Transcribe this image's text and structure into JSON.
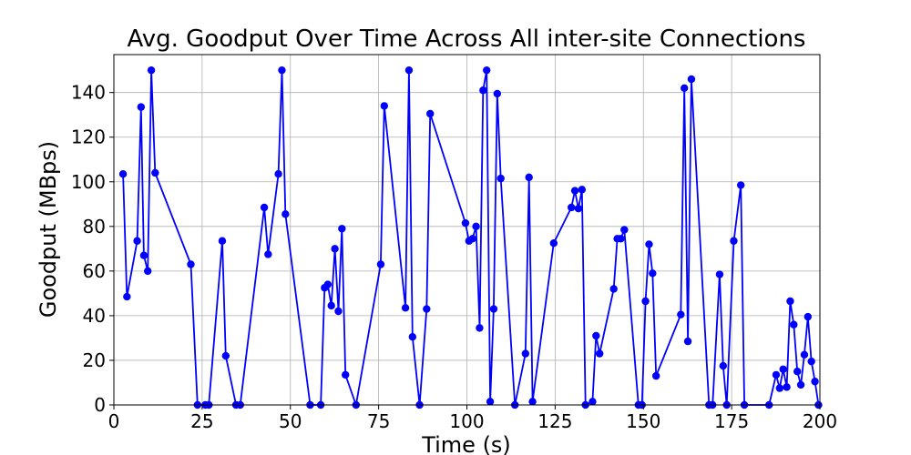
{
  "chart_data": {
    "type": "line",
    "title": "Avg. Goodput Over Time Across All inter-site Connections",
    "xlabel": "Time (s)",
    "ylabel": "Goodput (MBps)",
    "xlim": [
      0,
      200
    ],
    "ylim": [
      0,
      157
    ],
    "xticks": [
      0,
      25,
      50,
      75,
      100,
      125,
      150,
      175,
      200
    ],
    "yticks": [
      0,
      20,
      40,
      60,
      80,
      100,
      120,
      140
    ],
    "grid": true,
    "legend": "none",
    "series": [
      {
        "color": "#0000ff",
        "marker": "circle",
        "x": [
          2.6,
          3.7,
          6.6,
          7.7,
          8.5,
          9.6,
          10.6,
          11.7,
          21.8,
          23.7,
          25.9,
          26.9,
          30.7,
          31.7,
          34.6,
          35.8,
          42.6,
          43.7,
          46.6,
          47.6,
          48.6,
          55.6,
          58.6,
          59.7,
          60.6,
          61.6,
          62.6,
          63.6,
          64.6,
          65.6,
          68.6,
          75.6,
          76.6,
          82.6,
          83.6,
          84.6,
          86.6,
          88.6,
          89.6,
          99.6,
          100.6,
          101.6,
          102.6,
          103.6,
          104.6,
          105.6,
          106.6,
          107.6,
          108.6,
          109.6,
          113.6,
          116.6,
          117.6,
          118.6,
          124.6,
          129.6,
          130.6,
          131.6,
          132.6,
          133.6,
          135.6,
          136.6,
          137.6,
          141.6,
          142.6,
          143.6,
          144.6,
          148.6,
          149.6,
          150.6,
          151.6,
          152.6,
          153.6,
          160.6,
          161.6,
          162.6,
          163.6,
          168.6,
          169.6,
          171.6,
          172.6,
          173.6,
          175.6,
          177.6,
          178.6,
          185.6,
          187.6,
          188.6,
          189.6,
          190.6,
          191.6,
          192.6,
          193.6,
          194.6,
          195.6,
          196.6,
          197.6,
          198.6,
          199.6
        ],
        "y": [
          103.5,
          48.5,
          73.5,
          133.5,
          67,
          60,
          150,
          104,
          63,
          0,
          0,
          0,
          73.5,
          22,
          0,
          0,
          88.5,
          67.5,
          103.5,
          150,
          85.5,
          0,
          0,
          52.5,
          54,
          44.5,
          70,
          42,
          79,
          13.5,
          0,
          63,
          134,
          43.5,
          150,
          30.5,
          0,
          43,
          130.5,
          81.5,
          73.5,
          74.5,
          80,
          34.5,
          141,
          150,
          1.5,
          43,
          139.5,
          101.5,
          0,
          23,
          102,
          1.5,
          72.5,
          88.5,
          96,
          88,
          96.5,
          0,
          1.5,
          31,
          23,
          52,
          74.5,
          74.5,
          78.5,
          0,
          0,
          46.5,
          72,
          59,
          13,
          40.5,
          142,
          28.5,
          146,
          0,
          0,
          58.5,
          17.5,
          0,
          73.5,
          98.5,
          0,
          0,
          13.5,
          7.5,
          16,
          8,
          46.5,
          36,
          15,
          9,
          22.5,
          39.5,
          19.5,
          10.5,
          0
        ]
      }
    ]
  }
}
